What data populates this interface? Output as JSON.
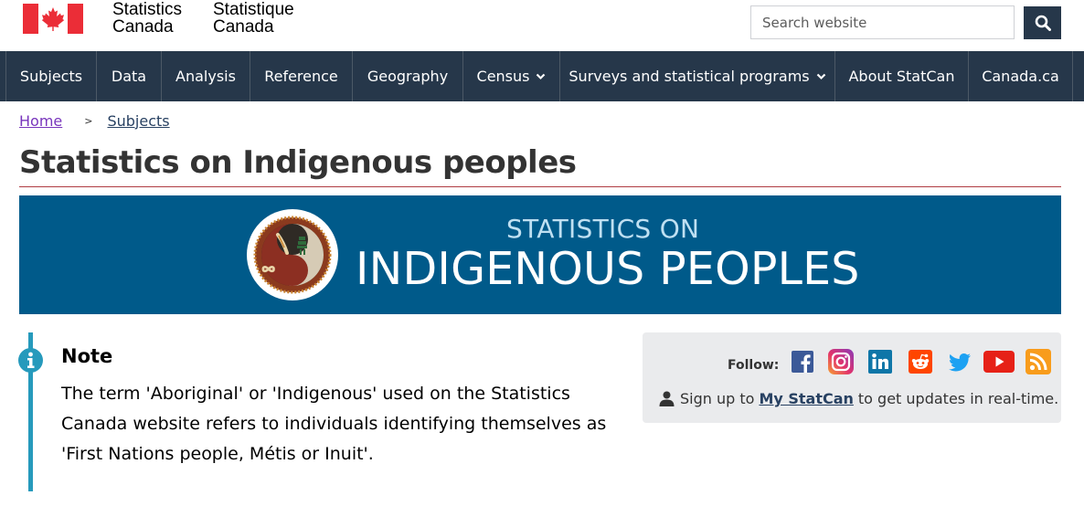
{
  "header": {
    "signature_en": [
      "Statistics",
      "Canada"
    ],
    "signature_fr": [
      "Statistique",
      "Canada"
    ],
    "search_placeholder": "Search website"
  },
  "nav": {
    "items": [
      {
        "label": "Subjects"
      },
      {
        "label": "Data"
      },
      {
        "label": "Analysis"
      },
      {
        "label": "Reference"
      },
      {
        "label": "Geography"
      },
      {
        "label": "Census"
      },
      {
        "label": "Surveys and statistical programs"
      },
      {
        "label": "About StatCan"
      },
      {
        "label": "Canada.ca"
      }
    ]
  },
  "breadcrumb": {
    "home": "Home",
    "separator": ">",
    "subjects": "Subjects"
  },
  "page": {
    "title": "Statistics on Indigenous peoples"
  },
  "banner": {
    "line1": "STATISTICS ON",
    "line2": "INDIGENOUS PEOPLES"
  },
  "note": {
    "title": "Note",
    "text": "The term 'Aboriginal' or 'Indigenous' used on the Statistics Canada website refers to individuals identifying themselves as 'First Nations people, Métis or Inuit'."
  },
  "follow": {
    "label": "Follow:",
    "icons": [
      "facebook-icon",
      "instagram-icon",
      "linkedin-icon",
      "reddit-icon",
      "twitter-icon",
      "youtube-icon",
      "rss-icon"
    ],
    "signup_prefix": "Sign up to",
    "signup_link": "My StatCan",
    "signup_suffix": "to get updates in real-time."
  },
  "colors": {
    "nav_bg": "#26374a",
    "banner_bg": "#005a8a",
    "title_rule": "#af3c43",
    "note_accent": "#269abc",
    "link": "#284162",
    "visited_link": "#7834bc"
  }
}
